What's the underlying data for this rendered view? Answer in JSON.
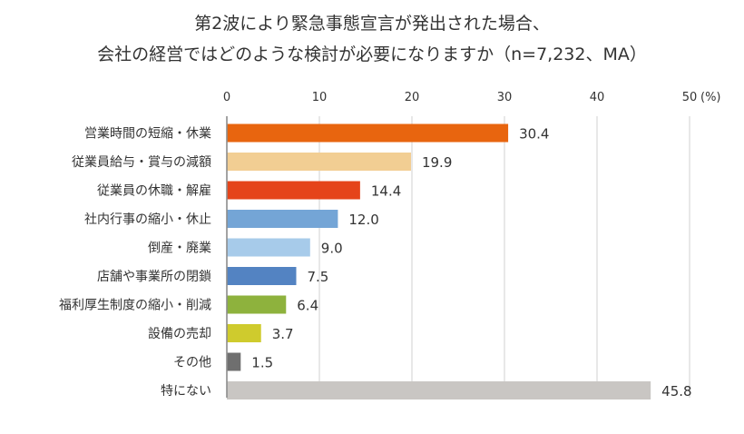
{
  "chart_data": {
    "type": "bar",
    "orientation": "horizontal",
    "title": [
      "第2波により緊急事態宣言が発出された場合、",
      "会社の経営ではどのような検討が必要になりますか（n=7,232、MA）"
    ],
    "xlabel": "",
    "ylabel": "",
    "unit_label": "(%)",
    "xlim": [
      0,
      50
    ],
    "xticks": [
      0,
      10,
      20,
      30,
      40,
      50
    ],
    "grid": true,
    "legend": "none",
    "categories": [
      "営業時間の短縮・休業",
      "従業員給与・賞与の減額",
      "従業員の休職・解雇",
      "社内行事の縮小・休止",
      "倒産・廃業",
      "店舗や事業所の閉鎖",
      "福利厚生制度の縮小・削減",
      "設備の売却",
      "その他",
      "特にない"
    ],
    "values": [
      30.4,
      19.9,
      14.4,
      12.0,
      9.0,
      7.5,
      6.4,
      3.7,
      1.5,
      45.8
    ],
    "value_labels": [
      "30.4",
      "19.9",
      "14.4",
      "12.0",
      "9.0",
      "7.5",
      "6.4",
      "3.7",
      "1.5",
      "45.8"
    ],
    "colors": [
      "#E8650F",
      "#F2CE93",
      "#E5441A",
      "#74A5D6",
      "#A7CBEA",
      "#5383C2",
      "#8EB23D",
      "#CFCB2D",
      "#6F6F6F",
      "#C9C6C3"
    ]
  }
}
